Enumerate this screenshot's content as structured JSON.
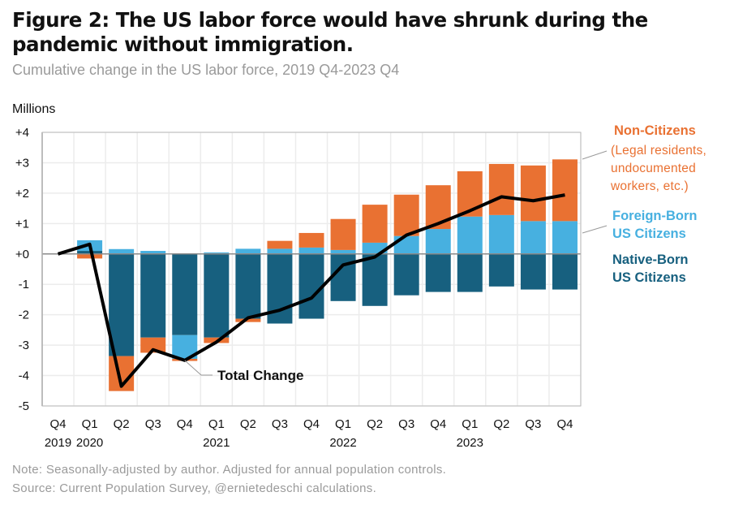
{
  "title": "Figure 2: The US labor force would have shrunk during the pandemic without immigration.",
  "subtitle": "Cumulative change in the US labor force, 2019 Q4-2023 Q4",
  "note": "Note: Seasonally-adjusted  by author. Adjusted for annual population controls.",
  "source": "Source: Current Population Survey, @ernietedeschi calculations.",
  "colors": {
    "non_citizens": "#E97132",
    "foreign_born": "#47B0E0",
    "native_born": "#17607F",
    "total": "#000000"
  },
  "chart_data": {
    "type": "bar",
    "stacked": true,
    "ylabel": "Millions",
    "ylim": [
      -5,
      4
    ],
    "yticks": [
      "+4",
      "+3",
      "+2",
      "+1",
      "+0",
      "-1",
      "-2",
      "-3",
      "-4",
      "-5"
    ],
    "ytick_values": [
      4,
      3,
      2,
      1,
      0,
      -1,
      -2,
      -3,
      -4,
      -5
    ],
    "grid": true,
    "categories": [
      "Q4",
      "Q1",
      "Q2",
      "Q3",
      "Q4",
      "Q1",
      "Q2",
      "Q3",
      "Q4",
      "Q1",
      "Q2",
      "Q3",
      "Q4",
      "Q1",
      "Q2",
      "Q3",
      "Q4"
    ],
    "year_labels": [
      "2019",
      "2020",
      "",
      "",
      "",
      "2021",
      "",
      "",
      "",
      "2022",
      "",
      "",
      "",
      "2023",
      "",
      "",
      ""
    ],
    "series": [
      {
        "name": "Native-Born US Citizens",
        "label_lines": [
          "Native-Born",
          "US Citizens"
        ],
        "values": [
          0,
          0.1,
          -3.36,
          -2.75,
          -2.67,
          -2.75,
          -2.13,
          -2.29,
          -2.13,
          -1.55,
          -1.71,
          -1.36,
          -1.25,
          -1.25,
          -1.07,
          -1.17,
          -1.17
        ]
      },
      {
        "name": "Foreign-Born US Citizens",
        "label_lines": [
          "Foreign-Born",
          "US Citizens"
        ],
        "values": [
          0,
          0.35,
          0.16,
          0.1,
          -0.78,
          0.05,
          0.17,
          0.17,
          0.21,
          0.13,
          0.37,
          0.59,
          0.82,
          1.23,
          1.28,
          1.08,
          1.08
        ]
      },
      {
        "name": "Non-Citizens",
        "label_lines": [
          "Non-Citizens",
          "(Legal residents,",
          "undocumented",
          "workers, etc.)"
        ],
        "values": [
          0,
          -0.15,
          -1.15,
          -0.5,
          -0.07,
          -0.18,
          -0.11,
          0.26,
          0.48,
          1.02,
          1.25,
          1.36,
          1.44,
          1.49,
          1.68,
          1.83,
          2.03
        ]
      }
    ],
    "line": {
      "name": "Total Change",
      "values": [
        0,
        0.32,
        -4.35,
        -3.15,
        -3.5,
        -2.9,
        -2.1,
        -1.85,
        -1.45,
        -0.36,
        -0.1,
        0.62,
        1.0,
        1.42,
        1.88,
        1.75,
        1.94
      ]
    }
  }
}
